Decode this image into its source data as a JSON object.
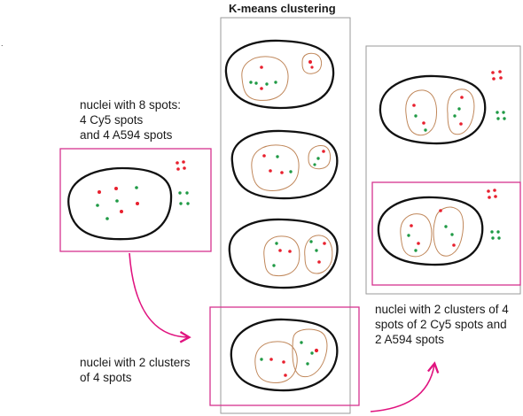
{
  "title": "K-means clustering",
  "stray_mark": ".",
  "labels": {
    "left_top": [
      "nuclei with 8 spots:",
      "4 Cy5 spots",
      "and 4 A594 spots"
    ],
    "left_bottom": [
      "nuclei with 2 clusters",
      "of 4 spots"
    ],
    "right": [
      "nuclei with 2 clusters of 4",
      "spots of 2 Cy5 spots and",
      "2 A594 spots"
    ]
  },
  "colors": {
    "cy5_spot": "#e8202e",
    "a594_spot": "#1f9a45",
    "nucleus_outline": "#111111",
    "cluster_outline": "#c0875a",
    "highlight_box": "#d6338f",
    "column_box": "#9a9a9a",
    "arrow": "#e0137f"
  }
}
